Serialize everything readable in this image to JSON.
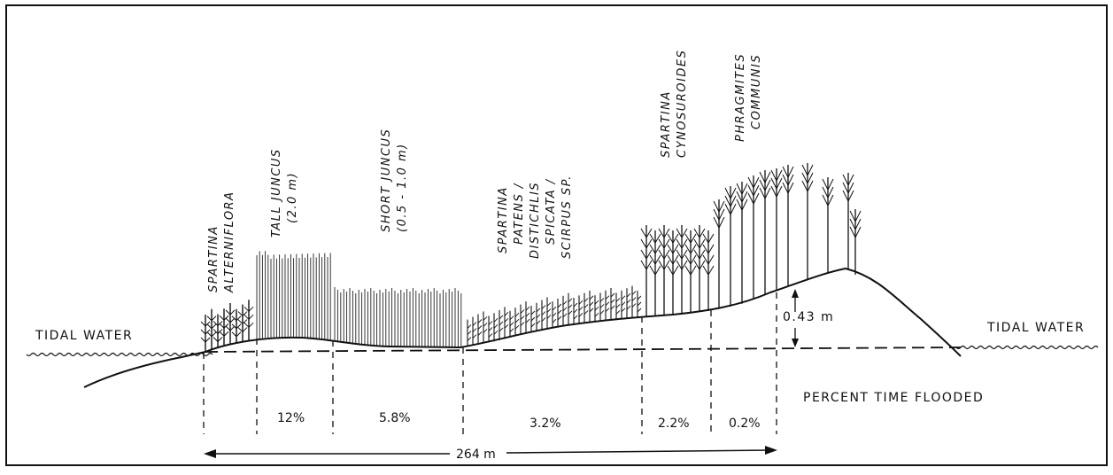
{
  "water_labels": {
    "left": "TIDAL WATER",
    "right": "TIDAL WATER"
  },
  "zones": [
    {
      "label_lines": [
        "SPARTINA",
        "ALTERNIFLORA"
      ]
    },
    {
      "label_lines": [
        "TALL  JUNCUS",
        "(2.0 m)"
      ]
    },
    {
      "label_lines": [
        "SHORT  JUNCUS",
        "(0.5 - 1.0 m)"
      ]
    },
    {
      "label_lines": [
        "SPARTINA",
        "PATENS /",
        "DISTICHLIS",
        "SPICATA /",
        "SCIRPUS  SP."
      ]
    },
    {
      "label_lines": [
        "SPARTINA",
        "CYNOSUROIDES"
      ]
    },
    {
      "label_lines": [
        "PHRAGMITES",
        "COMMUNIS"
      ]
    }
  ],
  "percent_flooded": [
    "12%",
    "5.8%",
    "3.2%",
    "2.2%",
    "0.2%"
  ],
  "percent_title": "PERCENT  TIME  FLOODED",
  "height_label": "0.43 m",
  "distance_label": "264 m"
}
